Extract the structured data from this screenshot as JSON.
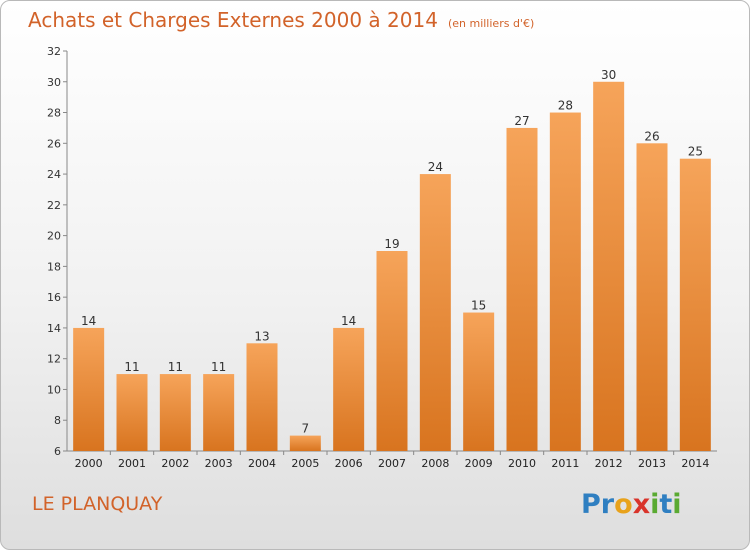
{
  "header": {
    "title": "Achats et Charges Externes 2000 à 2014",
    "unit": "(en milliers d'€)"
  },
  "footer": {
    "commune": "LE PLANQUAY",
    "logo_letters": [
      {
        "char": "P",
        "color": "#2f7fc1"
      },
      {
        "char": "r",
        "color": "#2f7fc1"
      },
      {
        "char": "o",
        "color": "#e8a21b"
      },
      {
        "char": "x",
        "color": "#d9342b"
      },
      {
        "char": "i",
        "color": "#5aaa32"
      },
      {
        "char": "t",
        "color": "#2f7fc1"
      },
      {
        "char": "i",
        "color": "#5aaa32"
      }
    ]
  },
  "colors": {
    "accent": "#d2632a",
    "bar_top": "#f6a45a",
    "bar_bottom": "#d8741f"
  },
  "chart_data": {
    "type": "bar",
    "categories": [
      "2000",
      "2001",
      "2002",
      "2003",
      "2004",
      "2005",
      "2006",
      "2007",
      "2008",
      "2009",
      "2010",
      "2011",
      "2012",
      "2013",
      "2014"
    ],
    "values": [
      14,
      11,
      11,
      11,
      13,
      7,
      14,
      19,
      24,
      15,
      27,
      28,
      30,
      26,
      25
    ],
    "title": "Achats et Charges Externes 2000 à 2014",
    "ylim": [
      6,
      32
    ],
    "yticks": [
      6,
      8,
      10,
      12,
      14,
      16,
      18,
      20,
      22,
      24,
      26,
      28,
      30,
      32
    ],
    "grid": false,
    "legend": "none"
  }
}
